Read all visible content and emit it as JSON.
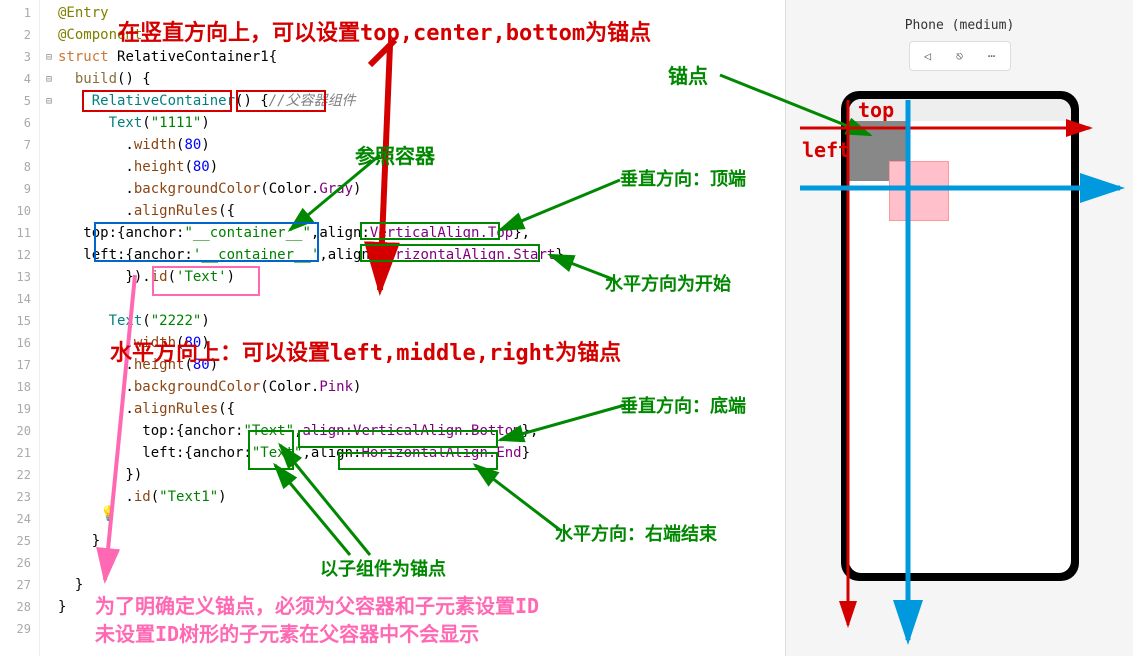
{
  "gutter": {
    "start": 1,
    "end": 29
  },
  "code": {
    "l1": "@Entry",
    "l2": "@Component",
    "l3_a": "struct ",
    "l3_b": "RelativeContainer1",
    "l3_c": "{",
    "l4_a": "  build",
    "l4_b": "() {",
    "l5_a": "    RelativeContainer",
    "l5_b": "() {",
    "l5_c": "//父容器组件",
    "l6_a": "      Text",
    "l6_b": "(",
    "l6_c": "\"1111\"",
    "l6_d": ")",
    "l7_a": "        .",
    "l7_b": "width",
    "l7_c": "(",
    "l7_d": "80",
    "l7_e": ")",
    "l8_a": "        .",
    "l8_b": "height",
    "l8_c": "(",
    "l8_d": "80",
    "l8_e": ")",
    "l9_a": "        .",
    "l9_b": "backgroundColor",
    "l9_c": "(Color.",
    "l9_d": "Gray",
    "l9_e": ")",
    "l10_a": "        .",
    "l10_b": "alignRules",
    "l10_c": "({",
    "l11_a": "   top:{",
    "l11_b": "anchor:",
    "l11_c": "\"__container__\"",
    "l11_d": ",align:",
    "l11_e": "VerticalAlign.Top",
    "l11_f": "},",
    "l12_a": "   left:{",
    "l12_b": "anchor:",
    "l12_c": "'__container__'",
    "l12_d": ",align:",
    "l12_e": "HorizontalAlign.Start",
    "l12_f": "}",
    "l13_a": "        }).",
    "l13_b": "id",
    "l13_c": "(",
    "l13_d": "'Text'",
    "l13_e": ")",
    "l14": "",
    "l15_a": "      Text",
    "l15_b": "(",
    "l15_c": "\"2222\"",
    "l15_d": ")",
    "l16_a": "        .",
    "l16_b": "width",
    "l16_c": "(",
    "l16_d": "80",
    "l16_e": ")",
    "l17_a": "        .",
    "l17_b": "height",
    "l17_c": "(",
    "l17_d": "80",
    "l17_e": ")",
    "l18_a": "        .",
    "l18_b": "backgroundColor",
    "l18_c": "(Color.",
    "l18_d": "Pink",
    "l18_e": ")",
    "l19_a": "        .",
    "l19_b": "alignRules",
    "l19_c": "({",
    "l20_a": "          top:{anchor:",
    "l20_b": "\"Text\"",
    "l20_c": ",",
    "l20_d": "align:VerticalAlign.Bottom",
    "l20_e": "},",
    "l21_a": "          left:{anchor:",
    "l21_b": "\"Text\"",
    "l21_c": ",align:",
    "l21_d": "HorizontalAlign.End",
    "l21_e": "}",
    "l22": "        })",
    "l23_a": "        .",
    "l23_b": "id",
    "l23_c": "(",
    "l23_d": "\"Text1\"",
    "l23_e": ")",
    "l24": "",
    "l25": "    }",
    "l26": "",
    "l27": "  }",
    "l28": "}",
    "l29": ""
  },
  "annotations": {
    "vertical_dir": "在竖直方向上，可以设置top,center,bottom为锚点",
    "horizontal_dir": "水平方向上：可以设置left,middle,right为锚点",
    "anchor": "锚点",
    "ref_container": "参照容器",
    "v_top": "垂直方向：顶端",
    "h_start": "水平方向为开始",
    "v_bottom": "垂直方向：底端",
    "h_end": "水平方向：右端结束",
    "child_anchor": "以子组件为锚点",
    "id_note1": "为了明确定义锚点，必须为父容器和子元素设置ID",
    "id_note2": "未设置ID树形的子元素在父容器中不会显示",
    "top_label": "top",
    "left_label": "left"
  },
  "preview": {
    "title": "Phone (medium)"
  },
  "colors": {
    "red": "#d40000",
    "green": "#008800",
    "blue": "#0099dd",
    "pink": "#ff69b4",
    "darkblue": "#0066cc"
  }
}
